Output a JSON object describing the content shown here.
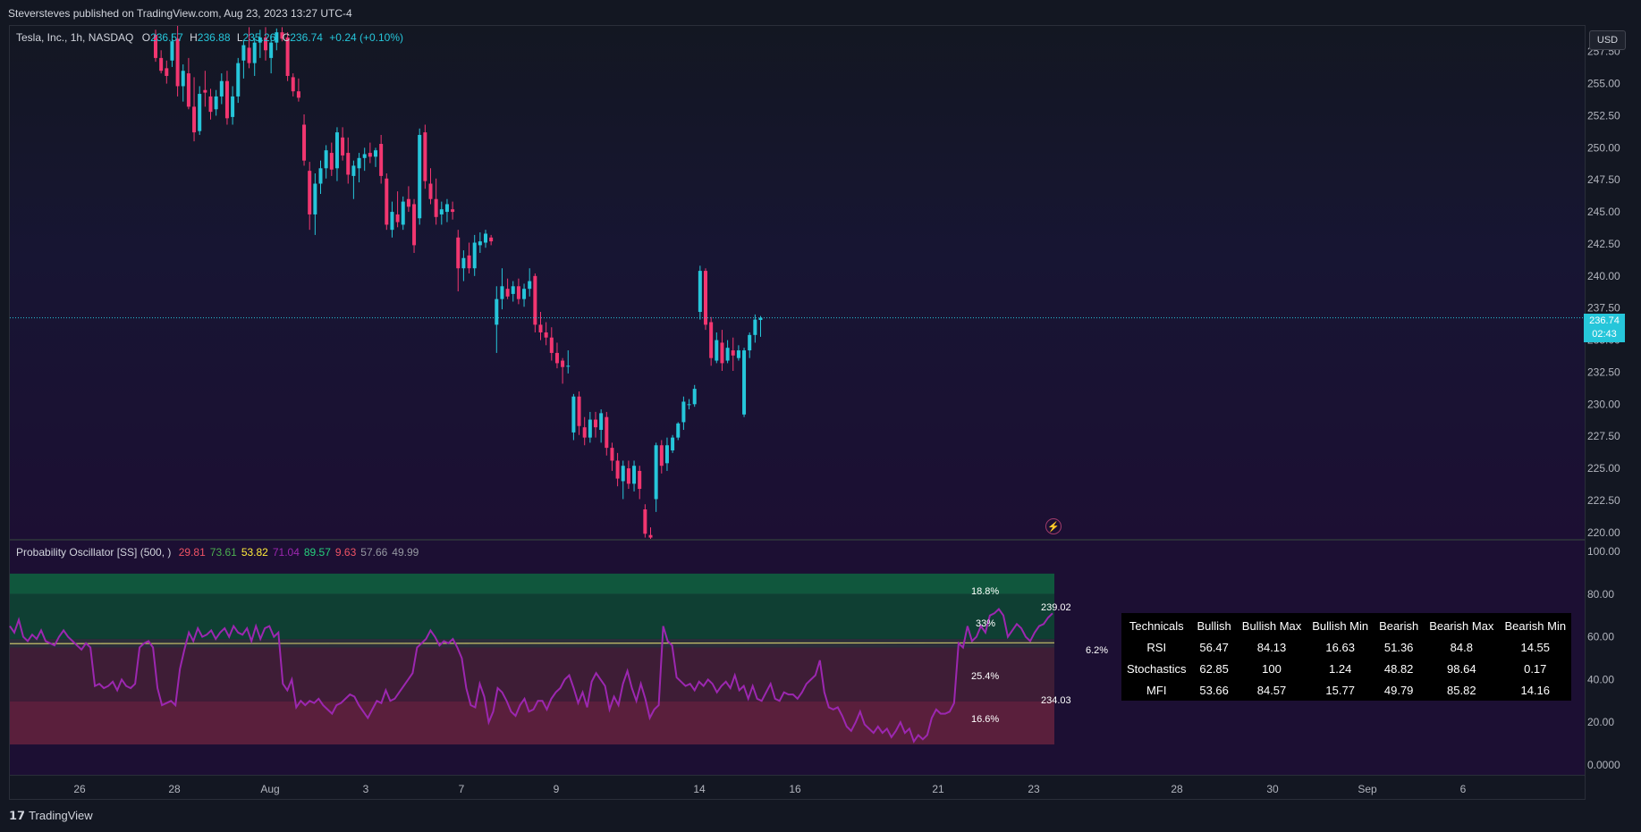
{
  "header": {
    "publisher_line": "Steversteves published on TradingView.com, Aug 23, 2023 13:27 UTC-4"
  },
  "legend": {
    "symbol": "Tesla, Inc., 1h, NASDAQ",
    "o_label": "O",
    "o_value": "236.57",
    "h_label": "H",
    "h_value": "236.88",
    "l_label": "L",
    "l_value": "235.26",
    "c_label": "C",
    "c_value": "236.74",
    "change": "+0.24 (+0.10%)"
  },
  "currency_button": "USD",
  "last_price": {
    "value": "236.74",
    "countdown": "02:43"
  },
  "price_axis_labels": [
    "257.50",
    "255.00",
    "252.50",
    "250.00",
    "247.50",
    "245.00",
    "242.50",
    "240.00",
    "237.50",
    "235.00",
    "232.50",
    "230.00",
    "227.50",
    "225.00",
    "222.50",
    "220.00"
  ],
  "osc_axis_labels": [
    "100.00",
    "80.00",
    "60.00",
    "40.00",
    "20.00",
    "0.0000"
  ],
  "time_axis_labels": [
    "26",
    "28",
    "Aug",
    "3",
    "7",
    "9",
    "14",
    "16",
    "21",
    "23",
    "28",
    "30",
    "Sep",
    "6"
  ],
  "oscillator": {
    "title": "Probability Oscillator [SS] (500, )",
    "values": [
      {
        "text": "29.81",
        "color": "#f05365"
      },
      {
        "text": "73.61",
        "color": "#4caf50"
      },
      {
        "text": "53.82",
        "color": "#ffeb3b"
      },
      {
        "text": "71.04",
        "color": "#9c27b0"
      },
      {
        "text": "89.57",
        "color": "#26d07c"
      },
      {
        "text": "9.63",
        "color": "#f05365"
      },
      {
        "text": "57.66",
        "color": "#9598a1"
      },
      {
        "text": "49.99",
        "color": "#9598a1"
      }
    ],
    "zone_labels": [
      "18.8%",
      "33%",
      "6.2%",
      "25.4%",
      "16.6%"
    ],
    "level_labels": [
      "239.02",
      "234.03"
    ]
  },
  "technicals_table": {
    "headers": [
      "Technicals",
      "Bullish",
      "Bullish Max",
      "Bullish Min",
      "Bearish",
      "Bearish Max",
      "Bearish Min"
    ],
    "rows": [
      [
        "RSI",
        "56.47",
        "84.13",
        "16.63",
        "51.36",
        "84.8",
        "14.55"
      ],
      [
        "Stochastics",
        "62.85",
        "100",
        "1.24",
        "48.82",
        "98.64",
        "0.17"
      ],
      [
        "MFI",
        "53.66",
        "84.57",
        "15.77",
        "49.79",
        "85.82",
        "14.16"
      ]
    ]
  },
  "footer": {
    "brand": "TradingView"
  },
  "colors": {
    "bull": "#26c6da",
    "bear": "#f23670",
    "osc_line": "#9c27b0",
    "mid_line": "#c9c26a"
  },
  "chart_data": [
    {
      "type": "candlestick",
      "title": "Tesla, Inc., 1h, NASDAQ",
      "ylim": [
        219.5,
        259.5
      ],
      "candles": [
        [
          258.8,
          259.2,
          256.7,
          257.0
        ],
        [
          257.0,
          257.6,
          255.8,
          256.0
        ],
        [
          256.2,
          256.8,
          255.0,
          255.6
        ],
        [
          256.8,
          258.9,
          256.3,
          258.3
        ],
        [
          258.5,
          259.5,
          254.0,
          254.8
        ],
        [
          254.8,
          256.5,
          253.6,
          256.0
        ],
        [
          255.8,
          257.0,
          253.0,
          253.2
        ],
        [
          253.2,
          255.5,
          250.5,
          251.2
        ],
        [
          251.3,
          254.8,
          251.0,
          254.2
        ],
        [
          254.5,
          256.0,
          253.2,
          254.3
        ],
        [
          254.0,
          254.6,
          252.2,
          252.8
        ],
        [
          253.0,
          254.5,
          252.5,
          254.0
        ],
        [
          254.0,
          255.8,
          253.4,
          255.2
        ],
        [
          255.2,
          256.0,
          251.8,
          252.3
        ],
        [
          252.4,
          254.8,
          251.8,
          254.0
        ],
        [
          254.0,
          257.0,
          253.5,
          256.6
        ],
        [
          256.8,
          258.4,
          255.4,
          258.0
        ],
        [
          257.8,
          259.4,
          256.2,
          256.6
        ],
        [
          256.6,
          258.6,
          255.6,
          258.2
        ],
        [
          258.2,
          259.2,
          257.0,
          258.6
        ],
        [
          258.6,
          259.4,
          256.8,
          257.6
        ],
        [
          257.0,
          258.8,
          255.8,
          258.2
        ],
        [
          258.2,
          259.3,
          257.6,
          259.0
        ],
        [
          259.0,
          259.4,
          258.3,
          258.5
        ],
        [
          258.6,
          259.0,
          255.2,
          255.6
        ],
        [
          255.5,
          255.8,
          254.0,
          254.4
        ],
        [
          254.4,
          255.4,
          253.6,
          253.9
        ],
        [
          251.8,
          252.6,
          248.6,
          249.0
        ],
        [
          248.2,
          248.9,
          243.6,
          244.8
        ],
        [
          244.8,
          248.0,
          243.2,
          247.2
        ],
        [
          247.2,
          249.0,
          246.4,
          248.4
        ],
        [
          248.4,
          250.2,
          247.6,
          249.8
        ],
        [
          249.6,
          250.4,
          247.8,
          248.3
        ],
        [
          248.4,
          251.6,
          247.4,
          251.2
        ],
        [
          250.8,
          251.6,
          249.0,
          249.4
        ],
        [
          249.6,
          250.8,
          247.2,
          247.9
        ],
        [
          247.8,
          249.0,
          246.0,
          248.6
        ],
        [
          248.4,
          249.6,
          247.3,
          249.2
        ],
        [
          249.2,
          250.0,
          248.2,
          249.5
        ],
        [
          249.6,
          250.4,
          248.8,
          249.3
        ],
        [
          249.3,
          250.0,
          248.5,
          249.8
        ],
        [
          250.3,
          251.0,
          247.2,
          247.8
        ],
        [
          247.6,
          248.0,
          243.6,
          244.0
        ],
        [
          243.6,
          245.8,
          243.0,
          245.0
        ],
        [
          244.8,
          246.6,
          243.8,
          244.2
        ],
        [
          244.0,
          246.2,
          243.6,
          245.8
        ],
        [
          246.0,
          247.0,
          245.0,
          245.4
        ],
        [
          245.6,
          246.0,
          241.8,
          242.4
        ],
        [
          244.5,
          251.5,
          244.0,
          251.0
        ],
        [
          251.2,
          251.8,
          246.8,
          247.4
        ],
        [
          247.2,
          248.4,
          245.6,
          246.0
        ],
        [
          246.0,
          247.6,
          244.0,
          244.6
        ],
        [
          244.8,
          245.8,
          244.0,
          245.2
        ],
        [
          245.0,
          246.0,
          244.2,
          245.6
        ],
        [
          245.2,
          245.8,
          244.4,
          245.0
        ],
        [
          243.0,
          243.6,
          238.8,
          240.6
        ],
        [
          240.6,
          242.0,
          239.6,
          241.4
        ],
        [
          241.6,
          242.6,
          240.2,
          240.6
        ],
        [
          240.6,
          243.2,
          240.0,
          242.6
        ],
        [
          242.4,
          243.4,
          241.8,
          242.7
        ],
        [
          242.6,
          243.6,
          242.2,
          243.3
        ],
        [
          243.0,
          243.2,
          242.4,
          242.7
        ],
        [
          236.2,
          239.2,
          234.0,
          238.2
        ],
        [
          238.2,
          240.6,
          237.4,
          239.2
        ],
        [
          239.0,
          239.8,
          238.2,
          238.4
        ],
        [
          238.6,
          239.6,
          238.0,
          239.2
        ],
        [
          239.2,
          239.8,
          237.8,
          238.2
        ],
        [
          238.2,
          239.4,
          237.6,
          239.0
        ],
        [
          239.0,
          240.6,
          238.4,
          239.6
        ],
        [
          240.0,
          240.2,
          235.6,
          236.2
        ],
        [
          236.2,
          237.2,
          235.0,
          235.6
        ],
        [
          235.6,
          236.4,
          234.6,
          235.2
        ],
        [
          235.2,
          236.0,
          233.4,
          234.0
        ],
        [
          234.0,
          234.8,
          232.8,
          233.2
        ],
        [
          233.4,
          233.6,
          231.6,
          232.9
        ],
        [
          233.0,
          234.2,
          232.4,
          233.0
        ],
        [
          227.8,
          230.8,
          227.2,
          230.6
        ],
        [
          230.6,
          231.0,
          227.6,
          228.3
        ],
        [
          228.2,
          229.0,
          226.8,
          227.4
        ],
        [
          227.4,
          229.4,
          227.0,
          228.8
        ],
        [
          228.8,
          229.4,
          227.4,
          228.2
        ],
        [
          228.0,
          229.6,
          227.0,
          229.3
        ],
        [
          229.0,
          229.4,
          226.0,
          226.6
        ],
        [
          226.6,
          227.0,
          224.8,
          225.6
        ],
        [
          225.6,
          226.2,
          223.6,
          224.2
        ],
        [
          224.0,
          225.6,
          222.6,
          225.2
        ],
        [
          225.0,
          225.6,
          223.4,
          223.8
        ],
        [
          223.8,
          225.6,
          223.2,
          225.2
        ],
        [
          224.8,
          225.2,
          222.6,
          223.4
        ],
        [
          221.8,
          222.2,
          219.6,
          219.9
        ],
        [
          219.8,
          220.4,
          219.4,
          219.6
        ],
        [
          222.6,
          227.0,
          221.6,
          226.8
        ],
        [
          226.8,
          227.2,
          224.6,
          225.2
        ],
        [
          225.4,
          227.4,
          224.8,
          226.8
        ],
        [
          226.4,
          227.6,
          226.2,
          227.4
        ],
        [
          227.4,
          228.6,
          227.2,
          228.5
        ],
        [
          228.6,
          230.6,
          228.0,
          230.2
        ],
        [
          230.0,
          230.4,
          229.6,
          230.0
        ],
        [
          230.0,
          231.5,
          229.8,
          231.2
        ],
        [
          237.2,
          240.8,
          236.6,
          240.4
        ],
        [
          240.4,
          240.6,
          235.8,
          236.2
        ],
        [
          236.4,
          236.8,
          233.0,
          233.6
        ],
        [
          233.4,
          235.6,
          233.2,
          235.0
        ],
        [
          234.8,
          235.8,
          232.6,
          233.2
        ],
        [
          233.4,
          235.0,
          233.2,
          234.4
        ],
        [
          234.2,
          235.2,
          232.6,
          233.8
        ],
        [
          233.6,
          234.6,
          233.4,
          234.2
        ],
        [
          229.2,
          234.4,
          229.0,
          234.2
        ],
        [
          234.2,
          235.6,
          233.6,
          235.4
        ],
        [
          235.4,
          237.0,
          234.8,
          236.6
        ],
        [
          236.57,
          236.88,
          235.26,
          236.74
        ]
      ],
      "last_price": 236.74
    },
    {
      "type": "line",
      "title": "Probability Oscillator [SS] (500, )",
      "ylim": [
        0,
        100
      ],
      "bands": [
        {
          "from": 80.0,
          "to": 89.6,
          "color": "#10573d"
        },
        {
          "from": 59.0,
          "to": 80.0,
          "color": "#0f3f33"
        },
        {
          "from": 55.0,
          "to": 59.0,
          "color": "#2b2d3a"
        },
        {
          "from": 29.8,
          "to": 55.0,
          "color": "#3e1d36"
        },
        {
          "from": 9.6,
          "to": 29.8,
          "color": "#5a1f3c"
        }
      ],
      "mid_line": 56.8,
      "series": [
        {
          "values": [
            65,
            62,
            68,
            60,
            58,
            61,
            59,
            63,
            58,
            57,
            56,
            60,
            63,
            60,
            58,
            56,
            54,
            57,
            55,
            37,
            38,
            36,
            37,
            39,
            35,
            40,
            37,
            36,
            38,
            55,
            57,
            58,
            55,
            36,
            28,
            29,
            30,
            28,
            45,
            54,
            62,
            58,
            64,
            60,
            61,
            63,
            59,
            62,
            64,
            60,
            65,
            62,
            61,
            64,
            58,
            65,
            59,
            64,
            65,
            60,
            62,
            38,
            35,
            40,
            27,
            30,
            28,
            30,
            29,
            31,
            28,
            26,
            24,
            28,
            29,
            31,
            33,
            32,
            28,
            25,
            22,
            26,
            30,
            29,
            35,
            30,
            31,
            34,
            37,
            40,
            43,
            55,
            57,
            59,
            63,
            60,
            56,
            58,
            57,
            59,
            55,
            50,
            36,
            28,
            27,
            38,
            32,
            20,
            25,
            36,
            34,
            30,
            25,
            23,
            28,
            31,
            25,
            26,
            30,
            30,
            26,
            31,
            34,
            36,
            40,
            42,
            36,
            29,
            34,
            27,
            39,
            43,
            40,
            37,
            26,
            32,
            28,
            38,
            44,
            36,
            30,
            38,
            31,
            22,
            26,
            28,
            65,
            58,
            56,
            41,
            39,
            37,
            38,
            35,
            39,
            37,
            40,
            38,
            34,
            37,
            39,
            36,
            42,
            35,
            37,
            31,
            37,
            31,
            30,
            34,
            38,
            31,
            30,
            34,
            33,
            33,
            31,
            34,
            38,
            40,
            42,
            49,
            34,
            27,
            26,
            27,
            23,
            18,
            16,
            20,
            25,
            19,
            17,
            15,
            18,
            15,
            17,
            13,
            16,
            20,
            15,
            17,
            11,
            14,
            12,
            14,
            22,
            26,
            24,
            24,
            25,
            29,
            57,
            55,
            65,
            58,
            60,
            65,
            62,
            70,
            71,
            73,
            70,
            60,
            63,
            66,
            64,
            60,
            58,
            62,
            65,
            66,
            69,
            71
          ],
          "color": "#9c27b0"
        }
      ]
    }
  ]
}
